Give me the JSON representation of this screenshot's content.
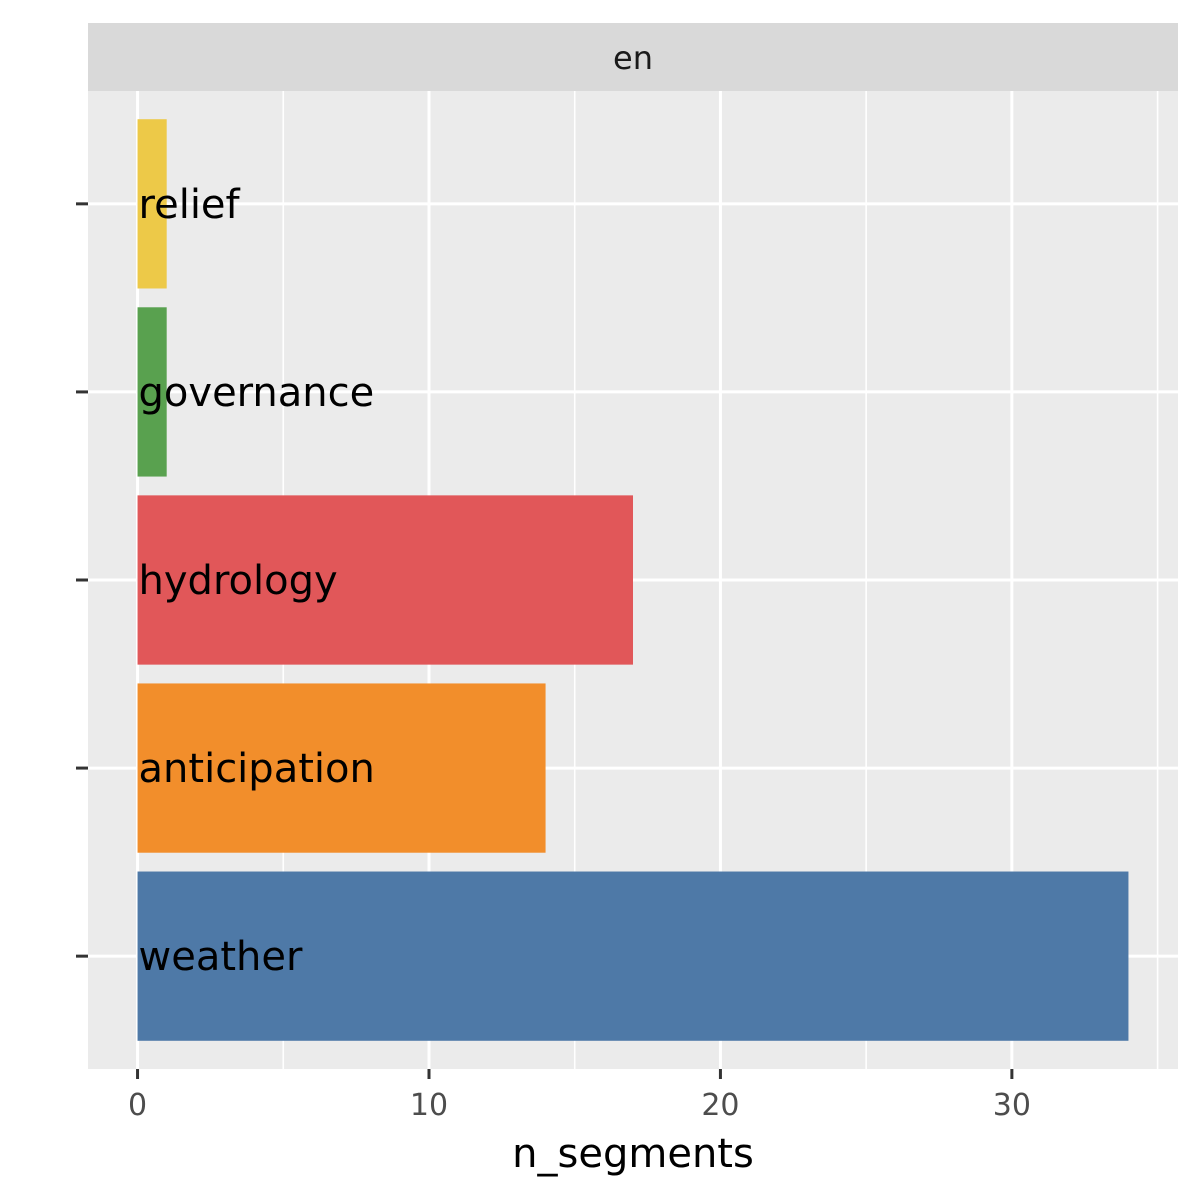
{
  "chart_data": {
    "type": "bar",
    "orientation": "horizontal",
    "facet": "en",
    "title": "",
    "xlabel": "n_segments",
    "ylabel": "",
    "xlim": [
      -1.7,
      35.7
    ],
    "x_ticks": [
      0,
      10,
      20,
      30
    ],
    "grid": true,
    "legend": "none",
    "categories": [
      "relief",
      "governance",
      "hydrology",
      "anticipation",
      "weather"
    ],
    "values": [
      1,
      1,
      17,
      14,
      34
    ],
    "colors": [
      "#EDC948",
      "#59A14F",
      "#E15759",
      "#F28E2B",
      "#4E79A7"
    ]
  }
}
